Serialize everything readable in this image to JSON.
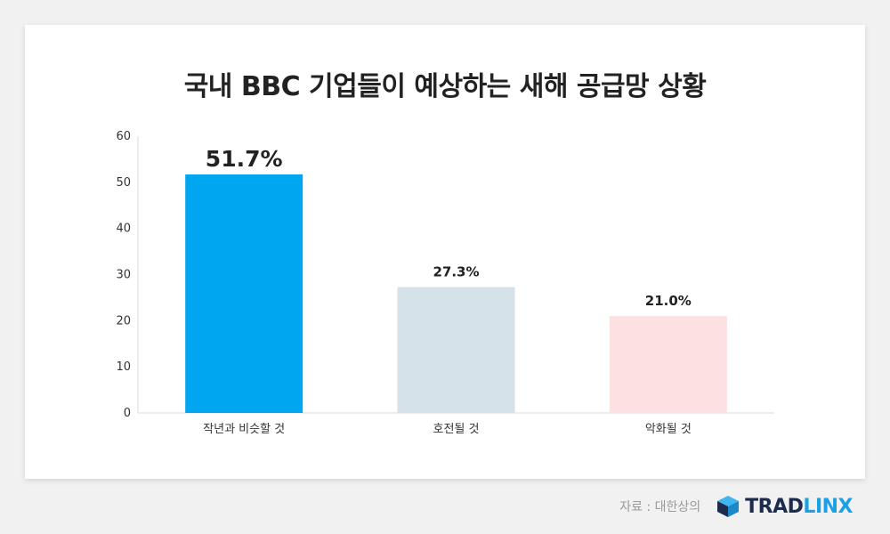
{
  "colors": {
    "bar_1": "#00a6ef",
    "bar_2": "#d6e2ea",
    "bar_3": "#fde0e0",
    "brand_dark": "#1d2b4f",
    "brand_blue": "#1aa0e6"
  },
  "chart_data": {
    "type": "bar",
    "title": "국내 BBC 기업들이 예상하는 새해 공급망 상황",
    "categories": [
      "작년과 비슷할 것",
      "호전될 것",
      "악화될 것"
    ],
    "values": [
      51.7,
      27.3,
      21.0
    ],
    "value_labels": [
      "51.7%",
      "27.3%",
      "21.0%"
    ],
    "y_ticks": [
      "0",
      "10",
      "20",
      "30",
      "40",
      "50",
      "60"
    ],
    "ylim": [
      0,
      60
    ],
    "xlabel": "",
    "ylabel": "",
    "grid": false
  },
  "footer": {
    "source": "자료 : 대한상의",
    "brand_left": "TRAD",
    "brand_right": "LINX",
    "logo_icon": "cube-icon"
  }
}
